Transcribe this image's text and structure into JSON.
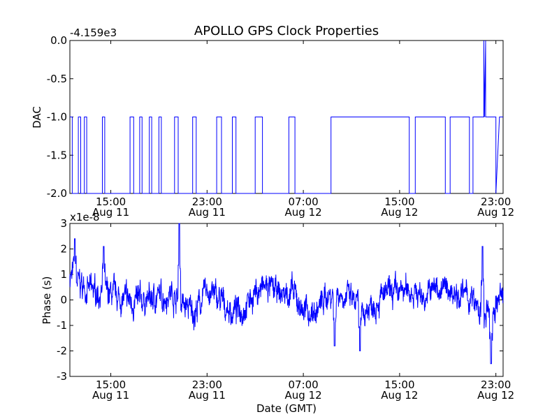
{
  "title": "APOLLO GPS Clock Properties",
  "x_label": "Date (GMT)",
  "line_color": "#0000ff",
  "x_ticks": [
    {
      "label": "15:00",
      "date": "Aug 11"
    },
    {
      "label": "23:00",
      "date": "Aug 11"
    },
    {
      "label": "07:00",
      "date": "Aug 12"
    },
    {
      "label": "15:00",
      "date": "Aug 12"
    },
    {
      "label": "23:00",
      "date": "Aug 12"
    }
  ],
  "chart_data": [
    {
      "type": "line",
      "ylabel": "DAC",
      "y_offset_label": "-4.159e3",
      "y_ticks": [
        "0.0",
        "-0.5",
        "-1.0",
        "-1.5",
        "-2.0"
      ],
      "xlim_hours": [
        11.6,
        47.6
      ],
      "ylim": [
        -2.0,
        0.0
      ],
      "grid": false,
      "series": [
        {
          "values_note": "DAC toggles between -2.0 and -1.0, briefly 0.0 near Aug 12 21:50",
          "x_hours": [
            11.6,
            11.8,
            12.3,
            12.5,
            12.8,
            13.0,
            14.3,
            14.5,
            16.6,
            16.9,
            17.4,
            17.6,
            18.2,
            18.4,
            19.0,
            19.2,
            20.3,
            20.6,
            21.8,
            22.1,
            23.8,
            24.2,
            25.1,
            25.4,
            27.0,
            27.6,
            29.8,
            30.3,
            33.3,
            33.7,
            39.8,
            40.3,
            42.8,
            43.2,
            44.8,
            45.1,
            47.0,
            47.3,
            47.6
          ],
          "on_hours": [
            [
              11.6,
              11.8
            ],
            [
              12.3,
              12.5
            ],
            [
              12.8,
              13.0
            ],
            [
              14.3,
              14.5
            ],
            [
              16.6,
              16.9
            ],
            [
              17.4,
              17.6
            ],
            [
              18.2,
              18.4
            ],
            [
              19.0,
              19.2
            ],
            [
              20.3,
              20.6
            ],
            [
              21.8,
              22.1
            ],
            [
              23.8,
              24.2
            ],
            [
              25.1,
              25.4
            ],
            [
              27.0,
              27.6
            ],
            [
              29.8,
              30.3
            ],
            [
              33.3,
              39.8
            ],
            [
              40.3,
              42.8
            ],
            [
              43.2,
              44.8
            ],
            [
              45.1,
              47.0
            ]
          ],
          "spike_hours": [
            46.0,
            46.15
          ]
        }
      ]
    },
    {
      "type": "line",
      "ylabel": "Phase (s)",
      "y_offset_label": "x1e-8",
      "y_ticks": [
        "3",
        "2",
        "1",
        "0",
        "-1",
        "-2",
        "-3"
      ],
      "xlim_hours": [
        11.6,
        47.6
      ],
      "ylim": [
        -3,
        3
      ],
      "grid": false,
      "series": [
        {
          "values_note": "noisy phase, mostly within ±1e-8, spikes near Aug 11 ~20:00 (3e-8), dip near Aug 12 22:30 (-2.5e-8)",
          "x_hours": [
            11.6,
            12,
            13,
            14,
            15,
            16,
            17,
            18,
            19,
            20,
            21,
            22,
            23,
            24,
            25,
            26,
            27,
            28,
            29,
            30,
            31,
            32,
            33,
            34,
            35,
            36,
            37,
            38,
            39,
            40,
            41,
            42,
            43,
            44,
            45,
            46,
            47,
            47.6
          ],
          "values": [
            1.0,
            0.8,
            0.4,
            0.3,
            0.2,
            0.0,
            -0.1,
            0.0,
            0.1,
            0.3,
            -0.2,
            -0.5,
            0.4,
            0.0,
            -0.5,
            -0.3,
            0.3,
            0.5,
            0.2,
            0.3,
            -0.4,
            -0.5,
            0.2,
            0.3,
            0.0,
            -0.5,
            0.0,
            0.2,
            0.3,
            0.4,
            0.1,
            0.5,
            0.4,
            0.3,
            0.0,
            -0.8,
            -0.2,
            0.2
          ],
          "noise_amplitude": 0.45,
          "spikes": [
            [
              12.0,
              2.4
            ],
            [
              14.4,
              2.1
            ],
            [
              20.7,
              3.0
            ],
            [
              33.6,
              -1.8
            ],
            [
              35.7,
              -2.0
            ],
            [
              45.9,
              2.1
            ],
            [
              46.6,
              -2.5
            ]
          ]
        }
      ]
    }
  ]
}
